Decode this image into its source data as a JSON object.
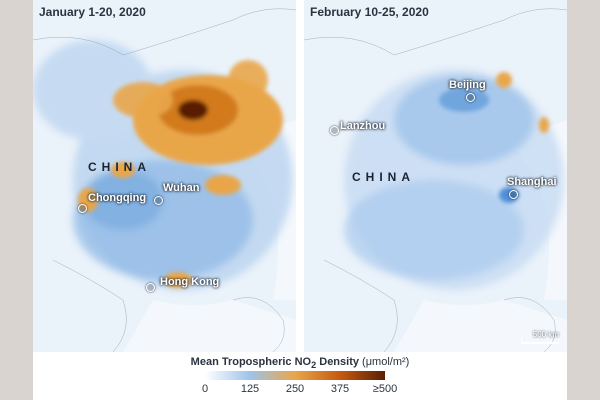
{
  "panels": [
    {
      "title": "January 1-20, 2020",
      "country": "CHINA",
      "cities": [
        "Chongqing",
        "Wuhan",
        "Hong Kong"
      ]
    },
    {
      "title": "February 10-25, 2020",
      "country": "CHINA",
      "cities": [
        "Beijing",
        "Lanzhou",
        "Shanghai"
      ],
      "scale_bar": "500 km"
    }
  ],
  "legend": {
    "title": "Mean Tropospheric NO",
    "subscript": "2",
    "title_suffix": " Density",
    "unit": "(μmol/m²)",
    "ticks": [
      "0",
      "125",
      "250",
      "375",
      "≥500"
    ],
    "colors": [
      "#ffffff",
      "#9ec3ea",
      "#e9a64a",
      "#c65a10",
      "#5a1f05"
    ]
  },
  "colors": {
    "land": "#eaf2fa",
    "water": "#f4f8fc",
    "low_no2": "#4d8fd6",
    "high_no2": "#e69a2c"
  }
}
